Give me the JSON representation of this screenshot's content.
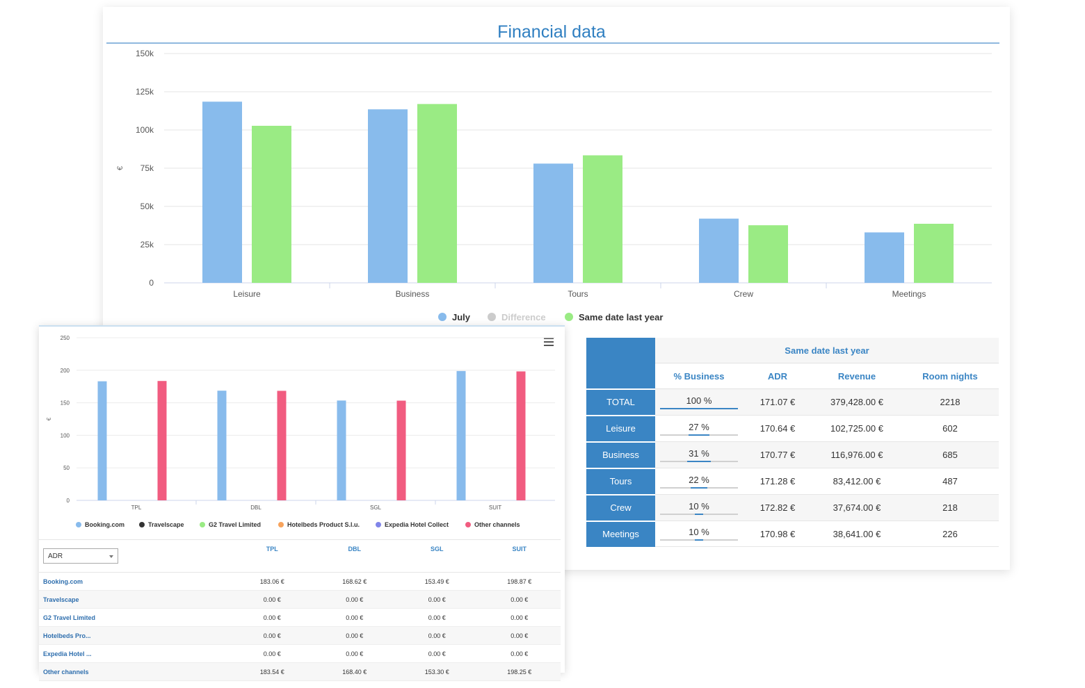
{
  "financial": {
    "title": "Financial data",
    "chart_data": {
      "type": "bar",
      "title": "Financial data",
      "ylabel": "€",
      "ylim": [
        0,
        150000
      ],
      "yticks": [
        "0",
        "25k",
        "50k",
        "75k",
        "100k",
        "125k",
        "150k"
      ],
      "ytick_values": [
        0,
        25000,
        50000,
        75000,
        100000,
        125000,
        150000
      ],
      "categories": [
        "Leisure",
        "Business",
        "Tours",
        "Crew",
        "Meetings"
      ],
      "series": [
        {
          "name": "July",
          "color": "#88bbec",
          "values": [
            118500,
            113500,
            78000,
            42000,
            33000
          ]
        },
        {
          "name": "Same date last year",
          "color": "#9aeb84",
          "values": [
            102725,
            116976,
            83412,
            37674,
            38641
          ]
        }
      ],
      "legend": [
        {
          "name": "July",
          "color": "#88bbec",
          "active": true
        },
        {
          "name": "Difference",
          "color": "#cccccc",
          "active": false
        },
        {
          "name": "Same date last year",
          "color": "#9aeb84",
          "active": true
        }
      ],
      "grid": true,
      "legend_position": "bottom-center"
    }
  },
  "summary": {
    "group_header": "Same date last year",
    "columns": [
      "% Business",
      "ADR",
      "Revenue",
      "Room nights"
    ],
    "rows": [
      {
        "label": "TOTAL",
        "pct": "100 %",
        "pct_value": 100,
        "adr": "171.07 €",
        "revenue": "379,428.00 €",
        "nights": "2218"
      },
      {
        "label": "Leisure",
        "pct": "27 %",
        "pct_value": 27,
        "adr": "170.64 €",
        "revenue": "102,725.00 €",
        "nights": "602"
      },
      {
        "label": "Business",
        "pct": "31 %",
        "pct_value": 31,
        "adr": "170.77 €",
        "revenue": "116,976.00 €",
        "nights": "685"
      },
      {
        "label": "Tours",
        "pct": "22 %",
        "pct_value": 22,
        "adr": "171.28 €",
        "revenue": "83,412.00 €",
        "nights": "487"
      },
      {
        "label": "Crew",
        "pct": "10 %",
        "pct_value": 10,
        "adr": "172.82 €",
        "revenue": "37,674.00 €",
        "nights": "218"
      },
      {
        "label": "Meetings",
        "pct": "10 %",
        "pct_value": 10,
        "adr": "170.98 €",
        "revenue": "38,641.00 €",
        "nights": "226"
      }
    ]
  },
  "channels": {
    "chart_data": {
      "type": "bar",
      "ylabel": "€",
      "ylim": [
        0,
        250
      ],
      "yticks": [
        "0",
        "50",
        "100",
        "150",
        "200",
        "250"
      ],
      "ytick_values": [
        0,
        50,
        100,
        150,
        200,
        250
      ],
      "categories": [
        "TPL",
        "DBL",
        "SGL",
        "SUIT"
      ],
      "series": [
        {
          "name": "Booking.com",
          "color": "#88bbec",
          "values": [
            183.06,
            168.62,
            153.49,
            198.87
          ]
        },
        {
          "name": "Travelscape",
          "color": "#333333",
          "values": [
            0,
            0,
            0,
            0
          ]
        },
        {
          "name": "G2 Travel Limited",
          "color": "#9aeb84",
          "values": [
            0,
            0,
            0,
            0
          ]
        },
        {
          "name": "Hotelbeds Product S.l.u.",
          "color": "#f7a35c",
          "values": [
            0,
            0,
            0,
            0
          ]
        },
        {
          "name": "Expedia Hotel Collect",
          "color": "#8085e9",
          "values": [
            0,
            0,
            0,
            0
          ]
        },
        {
          "name": "Other channels",
          "color": "#f15c80",
          "values": [
            183.54,
            168.4,
            153.3,
            198.25
          ]
        }
      ],
      "grid": true,
      "legend_position": "bottom-center"
    },
    "menu_icon": "hamburger-icon",
    "select_value": "ADR",
    "table": {
      "columns": [
        "TPL",
        "DBL",
        "SGL",
        "SUIT"
      ],
      "rows": [
        {
          "name": "Booking.com",
          "values": [
            "183.06 €",
            "168.62 €",
            "153.49 €",
            "198.87 €"
          ]
        },
        {
          "name": "Travelscape",
          "values": [
            "0.00 €",
            "0.00 €",
            "0.00 €",
            "0.00 €"
          ]
        },
        {
          "name": "G2 Travel Limited",
          "values": [
            "0.00 €",
            "0.00 €",
            "0.00 €",
            "0.00 €"
          ]
        },
        {
          "name": "Hotelbeds Pro...",
          "values": [
            "0.00 €",
            "0.00 €",
            "0.00 €",
            "0.00 €"
          ]
        },
        {
          "name": "Expedia Hotel ...",
          "values": [
            "0.00 €",
            "0.00 €",
            "0.00 €",
            "0.00 €"
          ]
        },
        {
          "name": "Other channels",
          "values": [
            "183.54 €",
            "168.40 €",
            "153.30 €",
            "198.25 €"
          ]
        }
      ]
    }
  }
}
